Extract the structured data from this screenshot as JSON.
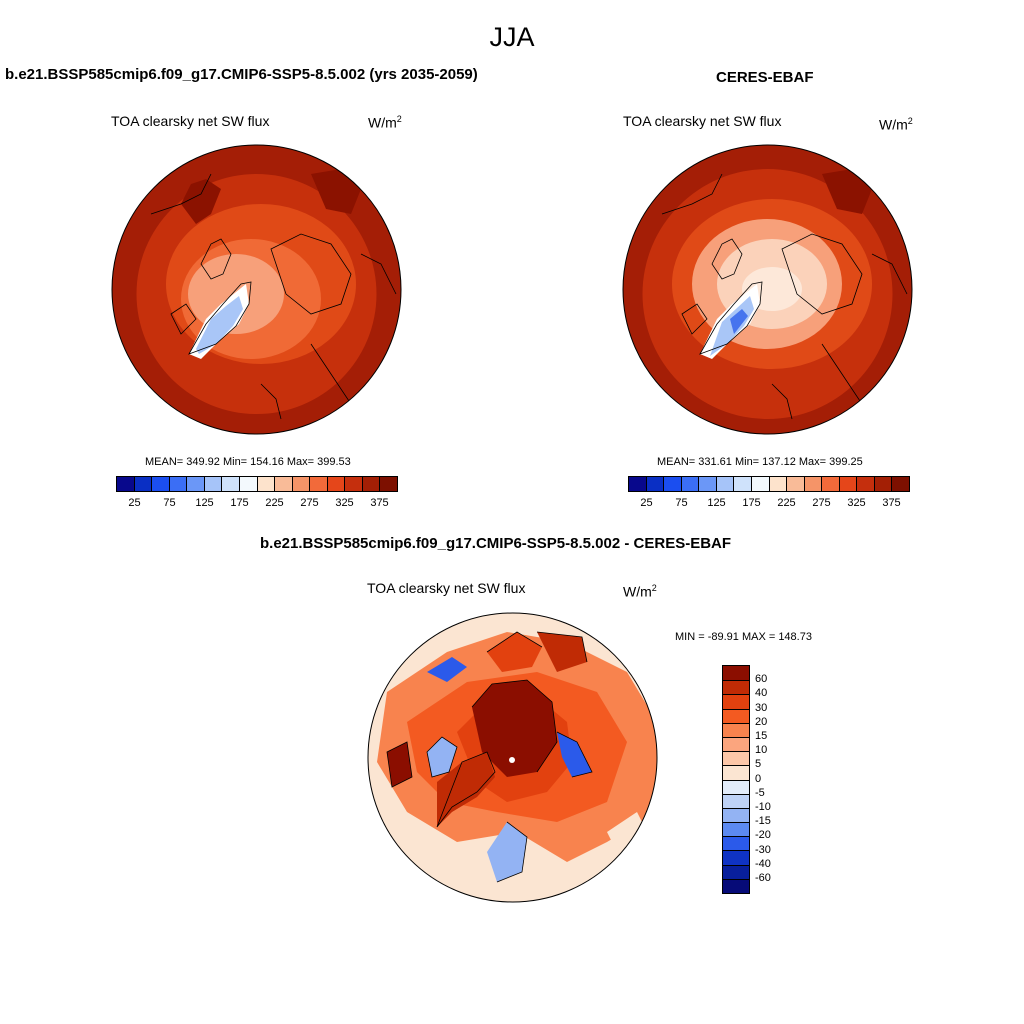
{
  "season": "JJA",
  "panel_left": {
    "title": "b.e21.BSSP585cmip6.f09_g17.CMIP6-SSP5-8.5.002 (yrs 2035-2059)",
    "variable": "TOA clearsky net SW flux",
    "units": "W/m",
    "units_exp": "2",
    "stats": "MEAN= 349.92  Min= 154.16  Max= 399.53"
  },
  "panel_right": {
    "title": "CERES-EBAF",
    "variable": "TOA clearsky net SW flux",
    "units": "W/m",
    "units_exp": "2",
    "stats": "MEAN= 331.61  Min= 137.12  Max= 399.25"
  },
  "panel_diff": {
    "title": "b.e21.BSSP585cmip6.f09_g17.CMIP6-SSP5-8.5.002 - CERES-EBAF",
    "variable": "TOA clearsky net SW flux",
    "units": "W/m",
    "units_exp": "2",
    "minmax": "MIN = -89.91 MAX = 148.73"
  },
  "colorbar_abs": {
    "tick_labels": [
      "25",
      "75",
      "125",
      "175",
      "225",
      "275",
      "325",
      "375"
    ],
    "colors": [
      "#08088c",
      "#0a2fc4",
      "#1b4ef0",
      "#3b6ef5",
      "#6b97f7",
      "#a6c4f9",
      "#cfe2fb",
      "#f3f9fd",
      "#fde3cc",
      "#f9bb98",
      "#f59468",
      "#f26a3a",
      "#e5461a",
      "#c52f0d",
      "#a31f05",
      "#7d1000"
    ]
  },
  "colorbar_diff": {
    "tick_labels": [
      "60",
      "40",
      "30",
      "20",
      "15",
      "10",
      "5",
      "0",
      "-5",
      "-10",
      "-15",
      "-20",
      "-30",
      "-40",
      "-60"
    ],
    "colors": [
      "#8b0e00",
      "#c02b05",
      "#e2410f",
      "#f35a21",
      "#f8834e",
      "#fba57e",
      "#fdc7a8",
      "#fbe5d2",
      "#e2ecfa",
      "#bed2f6",
      "#93b3f3",
      "#5c8af1",
      "#2b5aea",
      "#0f33c4",
      "#081f9c",
      "#060b78"
    ]
  },
  "map_colors": {
    "dark_red": "#a41e06",
    "deep_red": "#8b1200",
    "red": "#c6300c",
    "orange_red": "#e04a17",
    "orange": "#f06a36",
    "light_orange": "#f7a07a",
    "peach": "#fbd2ba",
    "pale": "#fde8d9",
    "light_blue": "#a9c6f7",
    "blue": "#4674ee",
    "dark_blue": "#0c2fbf"
  }
}
